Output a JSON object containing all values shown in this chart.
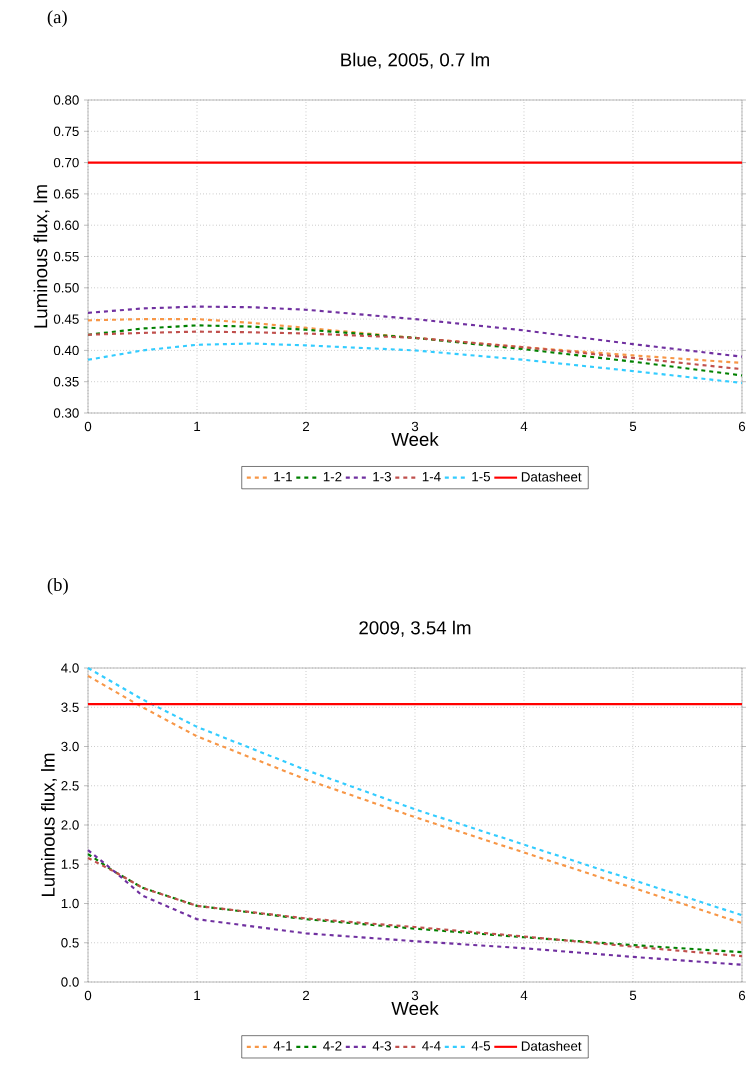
{
  "chart_data": [
    {
      "type": "line",
      "title": "Blue, 2005, 0.7 lm",
      "xlabel": "Week",
      "ylabel": "Luminous flux, lm",
      "annotations": [
        "(a)"
      ],
      "xlim": [
        0,
        6
      ],
      "xticks": [
        0,
        1,
        2,
        3,
        4,
        5,
        6
      ],
      "ylim": [
        0.3,
        0.8
      ],
      "yticks": [
        {
          "value": 0.3,
          "label": "0.30"
        },
        {
          "value": 0.35,
          "label": "0.35"
        },
        {
          "value": 0.4,
          "label": "0.40"
        },
        {
          "value": 0.45,
          "label": "0.45"
        },
        {
          "value": 0.5,
          "label": "0.50"
        },
        {
          "value": 0.55,
          "label": "0.55"
        },
        {
          "value": 0.6,
          "label": "0.60"
        },
        {
          "value": 0.65,
          "label": "0.65"
        },
        {
          "value": 0.7,
          "label": "0.70"
        },
        {
          "value": 0.75,
          "label": "0.75"
        },
        {
          "value": 0.8,
          "label": "0.80"
        }
      ],
      "grid": true,
      "legend": "bottom",
      "marker": "none",
      "series": [
        {
          "name": "1-1",
          "color": "#f79646",
          "line_style": "dashed",
          "x": [
            0,
            0.5,
            1,
            1.5,
            2,
            3,
            4,
            5,
            6
          ],
          "values": [
            0.448,
            0.45,
            0.45,
            0.444,
            0.436,
            0.42,
            0.405,
            0.392,
            0.38
          ]
        },
        {
          "name": "1-2",
          "color": "#008000",
          "line_style": "dashed",
          "x": [
            0,
            0.5,
            1,
            1.5,
            2,
            3,
            4,
            5,
            6
          ],
          "values": [
            0.425,
            0.435,
            0.44,
            0.438,
            0.433,
            0.42,
            0.402,
            0.382,
            0.36
          ]
        },
        {
          "name": "1-3",
          "color": "#7030a0",
          "line_style": "dashed",
          "x": [
            0,
            0.5,
            1,
            1.5,
            2,
            3,
            4,
            5,
            6
          ],
          "values": [
            0.46,
            0.467,
            0.47,
            0.469,
            0.465,
            0.45,
            0.432,
            0.41,
            0.39
          ]
        },
        {
          "name": "1-4",
          "color": "#c0504d",
          "line_style": "dashed",
          "x": [
            0,
            0.5,
            1,
            1.5,
            2,
            3,
            4,
            5,
            6
          ],
          "values": [
            0.425,
            0.428,
            0.43,
            0.429,
            0.427,
            0.42,
            0.405,
            0.388,
            0.37
          ]
        },
        {
          "name": "1-5",
          "color": "#33ccff",
          "line_style": "dashed",
          "x": [
            0,
            0.5,
            1,
            1.5,
            2,
            3,
            4,
            5,
            6
          ],
          "values": [
            0.385,
            0.4,
            0.409,
            0.411,
            0.408,
            0.4,
            0.385,
            0.367,
            0.348
          ]
        },
        {
          "name": "Datasheet",
          "color": "#ff0000",
          "line_style": "solid",
          "x": [
            0,
            6
          ],
          "values": [
            0.7,
            0.7
          ]
        }
      ]
    },
    {
      "type": "line",
      "title": "2009, 3.54 lm",
      "xlabel": "Week",
      "ylabel": "Luminous flux, lm",
      "annotations": [
        "(b)"
      ],
      "xlim": [
        0,
        6
      ],
      "xticks": [
        0,
        1,
        2,
        3,
        4,
        5,
        6
      ],
      "ylim": [
        0,
        4
      ],
      "yticks": [
        {
          "value": 0,
          "label": "0.0"
        },
        {
          "value": 0.5,
          "label": "0.5"
        },
        {
          "value": 1,
          "label": "1.0"
        },
        {
          "value": 1.5,
          "label": "1.5"
        },
        {
          "value": 2,
          "label": "2.0"
        },
        {
          "value": 2.5,
          "label": "2.5"
        },
        {
          "value": 3,
          "label": "3.0"
        },
        {
          "value": 3.5,
          "label": "3.5"
        },
        {
          "value": 4,
          "label": "4.0"
        }
      ],
      "grid": true,
      "legend": "bottom",
      "marker": "none",
      "series": [
        {
          "name": "4-1",
          "color": "#f79646",
          "line_style": "dashed",
          "x": [
            0,
            0.5,
            1,
            2,
            3,
            4,
            5,
            6
          ],
          "values": [
            3.9,
            3.5,
            3.13,
            2.58,
            2.1,
            1.65,
            1.2,
            0.75
          ]
        },
        {
          "name": "4-2",
          "color": "#008000",
          "line_style": "dashed",
          "x": [
            0,
            0.25,
            0.5,
            1,
            2,
            3,
            4,
            5,
            6
          ],
          "values": [
            1.63,
            1.4,
            1.2,
            0.97,
            0.8,
            0.68,
            0.57,
            0.47,
            0.38
          ]
        },
        {
          "name": "4-3",
          "color": "#7030a0",
          "line_style": "dashed",
          "x": [
            0,
            0.25,
            0.5,
            1,
            2,
            3,
            4,
            5,
            6
          ],
          "values": [
            1.68,
            1.4,
            1.1,
            0.8,
            0.62,
            0.52,
            0.43,
            0.32,
            0.22
          ]
        },
        {
          "name": "4-4",
          "color": "#c0504d",
          "line_style": "dashed",
          "x": [
            0,
            0.25,
            0.5,
            1,
            2,
            3,
            4,
            5,
            6
          ],
          "values": [
            1.58,
            1.4,
            1.2,
            0.97,
            0.81,
            0.7,
            0.58,
            0.45,
            0.33
          ]
        },
        {
          "name": "4-5",
          "color": "#33ccff",
          "line_style": "dashed",
          "x": [
            0,
            0.5,
            1,
            2,
            3,
            4,
            5,
            6
          ],
          "values": [
            4.0,
            3.6,
            3.25,
            2.7,
            2.2,
            1.75,
            1.3,
            0.85
          ]
        },
        {
          "name": "Datasheet",
          "color": "#ff0000",
          "line_style": "solid",
          "x": [
            0,
            6
          ],
          "values": [
            3.54,
            3.54
          ]
        }
      ]
    }
  ]
}
